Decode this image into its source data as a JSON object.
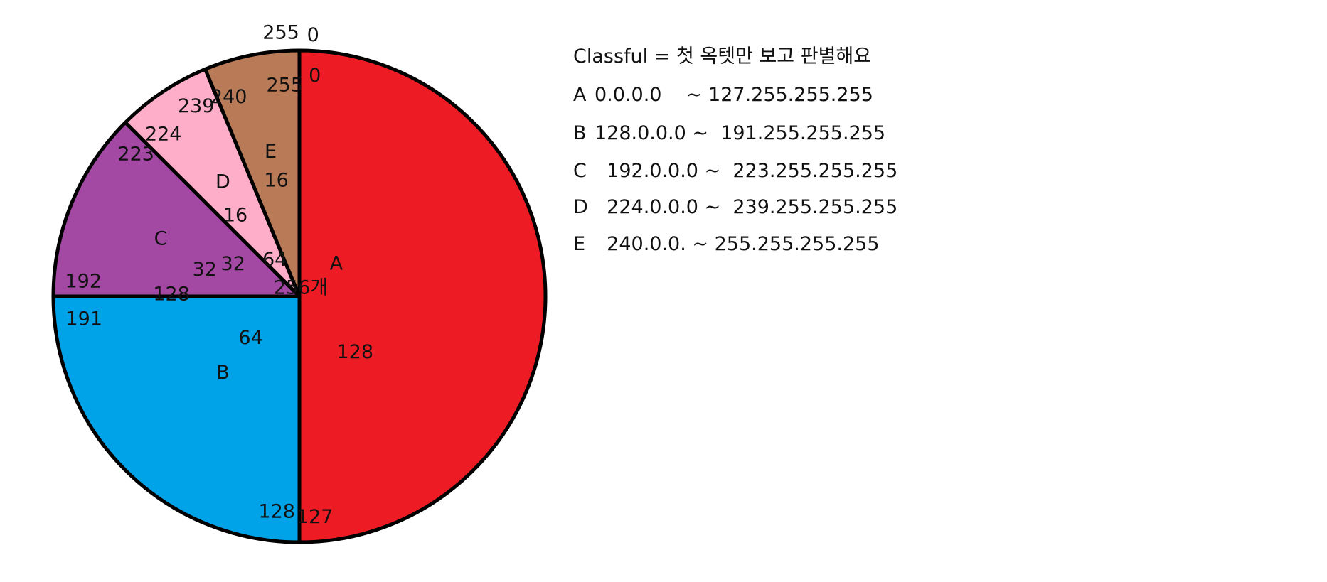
{
  "chart_data": {
    "type": "pie",
    "title": "",
    "center_label": "256개",
    "start_label": "0",
    "end_label": "255",
    "slices": [
      {
        "name": "A",
        "value": 128,
        "color": "#ed1c24",
        "start": "0",
        "end": "127",
        "size_label": "128"
      },
      {
        "name": "B",
        "value": 64,
        "color": "#00a2e8",
        "start": "128",
        "end": "191",
        "size_label": "64"
      },
      {
        "name": "C",
        "value": 32,
        "color": "#a349a4",
        "start": "192",
        "end": "223",
        "size_label": "32"
      },
      {
        "name": "D",
        "value": 16,
        "color": "#ffaec9",
        "start": "224",
        "end": "239",
        "size_label": "16"
      },
      {
        "name": "E",
        "value": 16,
        "color": "#b97a57",
        "start": "240",
        "end": "255",
        "size_label": "16"
      }
    ],
    "radial_labels": [
      "64",
      "128",
      "32"
    ]
  },
  "notes": {
    "title": "Classful = 첫 옥텟만 보고 판별해요",
    "rows": [
      {
        "cls": "A",
        "from": "0.0.0.0",
        "sep": "~",
        "to": "127.255.255.255"
      },
      {
        "cls": "B",
        "from": "128.0.0.0",
        "sep": "~",
        "to": "191.255.255.255"
      },
      {
        "cls": "C",
        "from": "192.0.0.0",
        "sep": "~",
        "to": "223.255.255.255"
      },
      {
        "cls": "D",
        "from": "224.0.0.0",
        "sep": "~",
        "to": "239.255.255.255"
      },
      {
        "cls": "E",
        "from": "240.0.0.",
        "sep": "~",
        "to": "255.255.255.255"
      }
    ]
  }
}
